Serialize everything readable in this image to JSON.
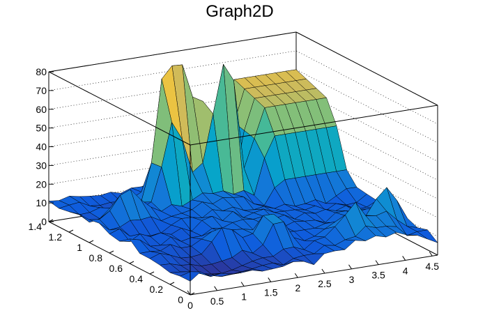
{
  "chart_data": {
    "type": "surface",
    "title": "Graph2D",
    "x": {
      "min": 0,
      "max": 4.6,
      "ticks": [
        0,
        0.5,
        1,
        1.5,
        2,
        2.5,
        3,
        3.5,
        4,
        4.5
      ],
      "tick_labels": [
        "0",
        "0.5",
        "1",
        "1.5",
        "2",
        "2.5",
        "3",
        "3.5",
        "4",
        "4.5"
      ]
    },
    "y": {
      "min": 0,
      "max": 1.4,
      "ticks": [
        0,
        0.2,
        0.4,
        0.6,
        0.8,
        1,
        1.2,
        1.4
      ],
      "tick_labels": [
        "0",
        "0.2",
        "0.4",
        "0.6",
        "0.8",
        "1",
        "1.2",
        "1.4"
      ]
    },
    "z": {
      "min": 0,
      "max": 80,
      "ticks": [
        0,
        10,
        20,
        30,
        40,
        50,
        60,
        70,
        80
      ],
      "tick_labels": [
        "0",
        "10",
        "20",
        "30",
        "40",
        "50",
        "60",
        "70",
        "80"
      ]
    },
    "z_grid": true,
    "palette": [
      "#352a87",
      "#0f5cdd",
      "#1481d6",
      "#06a4ca",
      "#2eb7a4",
      "#87bf77",
      "#d1bb59",
      "#fec832",
      "#f9fb0e"
    ],
    "surface": {
      "nx": 24,
      "ny": 14,
      "base": 11,
      "peaks": [
        {
          "x": 1.72,
          "y": 1.15,
          "z": 68,
          "w": 0.07
        },
        {
          "x": 1.9,
          "y": 1.18,
          "z": 72,
          "w": 0.07
        },
        {
          "x": 2.2,
          "y": 1.22,
          "z": 60,
          "w": 0.08
        },
        {
          "x": 2.55,
          "y": 1.15,
          "z": 70,
          "w": 0.07
        },
        {
          "x": 2.8,
          "y": 1.12,
          "z": 78,
          "w": 0.07
        },
        {
          "x": 1.4,
          "y": 0.4,
          "z": 30,
          "w": 0.08
        },
        {
          "x": 2.2,
          "y": 0.35,
          "z": 32,
          "w": 0.08
        },
        {
          "x": 3.4,
          "y": 0.22,
          "z": 24,
          "w": 0.08
        },
        {
          "x": 4.0,
          "y": 0.25,
          "z": 22,
          "w": 0.08
        },
        {
          "x": 4.3,
          "y": 0.3,
          "z": 26,
          "w": 0.08
        },
        {
          "x": 0.75,
          "y": 1.0,
          "z": 30,
          "w": 0.1
        }
      ],
      "ridge": {
        "x_from": 3.1,
        "x_to": 4.6,
        "y_from": 0.85,
        "y_to": 1.4,
        "z": 60
      },
      "valley": {
        "x": 0.9,
        "y": 0.2,
        "z": 0,
        "w": 0.18
      }
    }
  }
}
